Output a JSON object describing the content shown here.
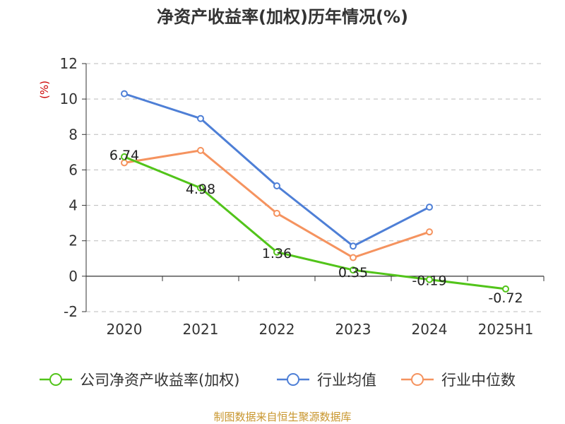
{
  "chart_data": {
    "type": "line",
    "title": "净资产收益率(加权)历年情况(%)",
    "ylabel": "(%)",
    "categories": [
      "2020",
      "2021",
      "2022",
      "2023",
      "2024",
      "2025H1"
    ],
    "ylim": [
      -2,
      12
    ],
    "yticks": [
      -2,
      0,
      2,
      4,
      6,
      8,
      10,
      12
    ],
    "grid": true,
    "legend_position": "bottom",
    "series": [
      {
        "name": "公司净资产收益率(加权)",
        "color": "#52c41a",
        "values": [
          6.74,
          4.98,
          1.36,
          0.35,
          -0.19,
          -0.72
        ],
        "labels": [
          "6.74",
          "4.98",
          "1.36",
          "0.35",
          "-0.19",
          "-0.72"
        ]
      },
      {
        "name": "行业均值",
        "color": "#4e7fd6",
        "values": [
          10.3,
          8.9,
          5.1,
          1.7,
          3.9,
          null
        ]
      },
      {
        "name": "行业中位数",
        "color": "#f5935f",
        "values": [
          6.4,
          7.1,
          3.55,
          1.05,
          2.5,
          null
        ]
      }
    ]
  },
  "source_text": "制图数据来自恒生聚源数据库",
  "colors": {
    "axis": "#333333",
    "grid": "#bbbbbb",
    "ylabel": "#cc0000",
    "source": "#c8962e"
  }
}
